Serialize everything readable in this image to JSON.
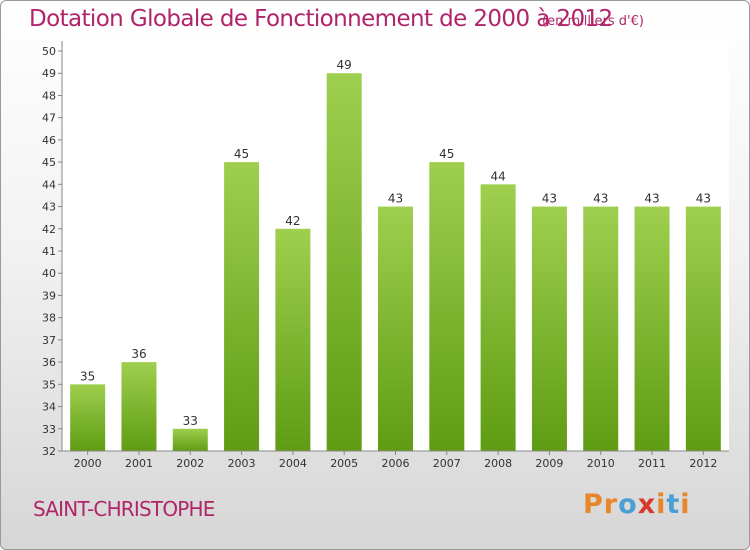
{
  "header": {
    "title": "Dotation Globale de Fonctionnement de 2000 à 2012",
    "subtitle": "(en milliers d'€)"
  },
  "footer": {
    "commune": "SAINT-CHRISTOPHE",
    "logo_text": "Proxiti"
  },
  "colors": {
    "bar_top": "#9ecf4e",
    "bar_bottom": "#5f9c13",
    "title": "#b0256a",
    "logo": [
      "#e8862a",
      "#e8862a",
      "#4aa0d5",
      "#d43a2b",
      "#e8862a",
      "#4aa0d5",
      "#e8862a"
    ]
  },
  "chart_data": {
    "type": "bar",
    "categories": [
      "2000",
      "2001",
      "2002",
      "2003",
      "2004",
      "2005",
      "2006",
      "2007",
      "2008",
      "2009",
      "2010",
      "2011",
      "2012"
    ],
    "values": [
      35,
      36,
      33,
      45,
      42,
      49,
      43,
      45,
      44,
      43,
      43,
      43,
      43
    ],
    "title": "Dotation Globale de Fonctionnement de 2000 à 2012",
    "subtitle": "(en milliers d'€)",
    "xlabel": "",
    "ylabel": "",
    "ylim": [
      32,
      50
    ],
    "ytick_step": 1,
    "grid": false,
    "data_labels": true
  }
}
